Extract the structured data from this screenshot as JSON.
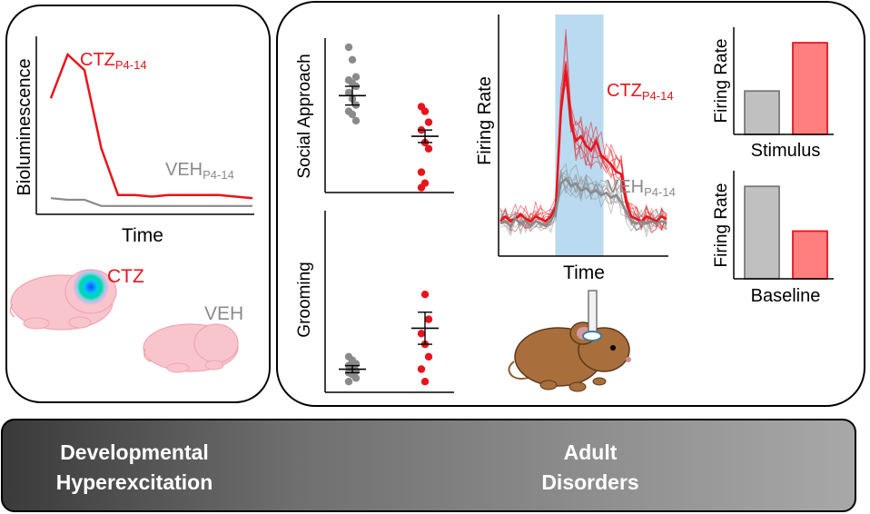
{
  "colors": {
    "ctz": "#e8141c",
    "veh": "#8a8a8a",
    "light_blue_window": "#b9daf0",
    "bar_red_fill": "#ff7f7f",
    "bar_gray_fill": "#c0c0c0",
    "banner_dark": "#3a3a3a",
    "banner_light": "#a0a0a0",
    "pup_skin": "#f9c5cc",
    "mouse_brown": "#a86e3c"
  },
  "panel_left": {
    "ylabel": "Bioluminescence",
    "xlabel": "Time",
    "ctz_label": "CTZ",
    "ctz_sub": "P4-14",
    "veh_label": "VEH",
    "veh_sub": "P4-14",
    "pup_ctz_label": "CTZ",
    "pup_veh_label": "VEH",
    "pup_ctz_icon": "mouse-pup-glowing-head-icon",
    "pup_veh_icon": "mouse-pup-icon"
  },
  "panel_right": {
    "social_ylabel": "Social Approach",
    "grooming_ylabel": "Grooming",
    "trace_ylabel": "Firing Rate",
    "trace_xlabel": "Time",
    "trace_ctz_label": "CTZ",
    "trace_ctz_sub": "P4-14",
    "trace_veh_label": "VEH",
    "trace_veh_sub": "P4-14",
    "bar_top_ylabel": "Firing Rate",
    "bar_top_xlabel": "Stimulus",
    "bar_bottom_ylabel": "Firing Rate",
    "bar_bottom_xlabel": "Baseline",
    "mouse_icon": "adult-mouse-with-implant-icon"
  },
  "banner": {
    "left_line1": "Developmental",
    "left_line2": "Hyperexcitation",
    "right_line1": "Adult",
    "right_line2": "Disorders"
  },
  "chart_data": [
    {
      "type": "line",
      "xlabel": "Time",
      "ylabel": "Bioluminescence",
      "series": [
        {
          "name": "CTZP4-14",
          "color": "#e8141c",
          "values": [
            0.72,
            1.0,
            0.9,
            0.4,
            0.1,
            0.1,
            0.09,
            0.1,
            0.1,
            0.1,
            0.1,
            0.09,
            0.08
          ]
        },
        {
          "name": "VEHP4-14",
          "color": "#8a8a8a",
          "values": [
            0.08,
            0.07,
            0.07,
            0.03,
            0.03,
            0.03,
            0.03,
            0.03,
            0.03,
            0.03,
            0.03,
            0.03,
            0.03
          ]
        }
      ]
    },
    {
      "type": "scatter",
      "ylabel": "Social Approach",
      "groups": [
        {
          "name": "VEH",
          "color": "#8a8a8a",
          "values": [
            0.93,
            0.85,
            0.74,
            0.72,
            0.7,
            0.68,
            0.64,
            0.6,
            0.56,
            0.52,
            0.5,
            0.46
          ],
          "mean": 0.62,
          "sem": 0.06
        },
        {
          "name": "CTZ",
          "color": "#e8141c",
          "values": [
            0.55,
            0.52,
            0.45,
            0.4,
            0.32,
            0.28,
            0.13,
            0.06
          ],
          "mean": 0.36,
          "sem": 0.04
        }
      ]
    },
    {
      "type": "scatter",
      "ylabel": "Grooming",
      "groups": [
        {
          "name": "VEH",
          "color": "#8a8a8a",
          "values": [
            0.2,
            0.18,
            0.16,
            0.15,
            0.14,
            0.12,
            0.11,
            0.1,
            0.08,
            0.06
          ],
          "mean": 0.13,
          "sem": 0.02
        },
        {
          "name": "CTZ",
          "color": "#e8141c",
          "values": [
            1.15,
            0.55,
            0.41,
            0.33,
            0.27,
            0.2,
            0.13,
            0.06
          ],
          "mean": 0.36,
          "sem": 0.09
        }
      ]
    },
    {
      "type": "line",
      "xlabel": "Time",
      "ylabel": "Firing Rate",
      "stimulus_window": [
        0.33,
        0.62
      ],
      "series": [
        {
          "name": "CTZP4-14",
          "color": "#e8141c",
          "values": [
            0.14,
            0.16,
            0.14,
            0.15,
            0.17,
            0.15,
            0.14,
            0.16,
            0.15,
            0.14,
            0.16,
            0.2,
            0.6,
            0.78,
            0.55,
            0.48,
            0.5,
            0.46,
            0.44,
            0.48,
            0.42,
            0.4,
            0.38,
            0.35,
            0.34,
            0.22,
            0.16,
            0.15,
            0.14,
            0.16,
            0.15,
            0.14,
            0.16,
            0.15
          ]
        },
        {
          "name": "VEHP4-14",
          "color": "#8a8a8a",
          "values": [
            0.13,
            0.14,
            0.12,
            0.15,
            0.13,
            0.14,
            0.12,
            0.14,
            0.13,
            0.12,
            0.14,
            0.18,
            0.3,
            0.32,
            0.29,
            0.3,
            0.27,
            0.28,
            0.26,
            0.27,
            0.25,
            0.26,
            0.24,
            0.25,
            0.22,
            0.18,
            0.14,
            0.13,
            0.14,
            0.13,
            0.14,
            0.13,
            0.14,
            0.13
          ]
        }
      ]
    },
    {
      "type": "bar",
      "xlabel": "Stimulus",
      "ylabel": "Firing Rate",
      "categories": [
        "VEH",
        "CTZ"
      ],
      "values": [
        0.46,
        0.97
      ]
    },
    {
      "type": "bar",
      "xlabel": "Baseline",
      "ylabel": "Firing Rate",
      "categories": [
        "VEH",
        "CTZ"
      ],
      "values": [
        0.97,
        0.5
      ]
    }
  ]
}
